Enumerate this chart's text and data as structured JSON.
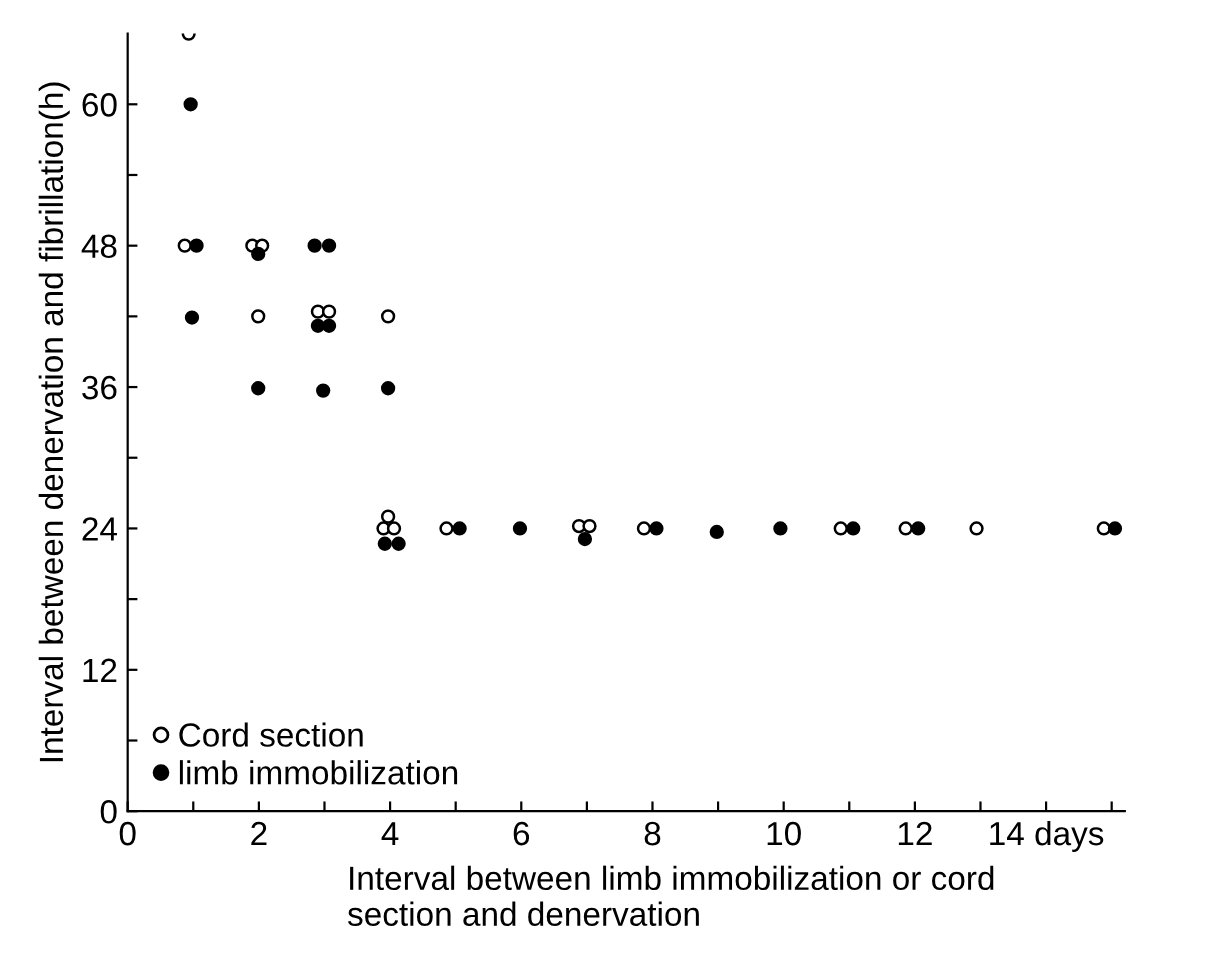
{
  "chart_data": {
    "type": "scatter",
    "xlabel": "Interval between limb immobilization or cord\nsection and denervation",
    "ylabel": "Interval between denervation and fibrillation(h)",
    "xlim": [
      0,
      15.2
    ],
    "ylim": [
      0,
      66
    ],
    "xticks": [
      0,
      {
        "value": 1,
        "label": null
      },
      2,
      {
        "value": 3,
        "label": null
      },
      4,
      {
        "value": 5,
        "label": null
      },
      6,
      {
        "value": 7,
        "label": null
      },
      8,
      {
        "value": 9,
        "label": null
      },
      10,
      {
        "value": 11,
        "label": null
      },
      12,
      {
        "value": 13,
        "label": null
      },
      {
        "value": 14,
        "label": "14 days"
      },
      {
        "value": 15,
        "label": null
      }
    ],
    "yticks": [
      0,
      {
        "value": 6,
        "label": null
      },
      12,
      {
        "value": 18,
        "label": null
      },
      24,
      {
        "value": 30,
        "label": null
      },
      36,
      {
        "value": 42,
        "label": null
      },
      48,
      {
        "value": 54,
        "label": null
      },
      60
    ],
    "grid": false,
    "legend": "bottom left",
    "marker": "circle",
    "series": [
      {
        "name": "Cord section",
        "color": "#ffffff",
        "x": [
          0.93,
          0.87,
          1.9,
          2.05,
          1.99,
          2.9,
          3.07,
          3.97,
          3.97,
          3.9,
          4.06,
          4.86,
          6.88,
          7.04,
          7.87,
          10.87,
          11.86,
          12.94,
          14.88
        ],
        "values": [
          66,
          48,
          48,
          48,
          42,
          42.4,
          42.4,
          42,
          25,
          24,
          24,
          24,
          24.2,
          24.2,
          24,
          24,
          24,
          24,
          24
        ]
      },
      {
        "name": "limb immobilization",
        "color": "#000000",
        "x": [
          0.96,
          1.05,
          0.98,
          1.99,
          1.99,
          2.85,
          3.07,
          2.9,
          3.07,
          2.98,
          3.97,
          3.92,
          4.13,
          5.06,
          5.98,
          6.97,
          8.06,
          8.98,
          9.95,
          11.06,
          12.05,
          15.05
        ],
        "values": [
          60,
          48,
          41.9,
          47.3,
          35.9,
          48,
          48,
          41.2,
          41.2,
          35.7,
          35.9,
          22.7,
          22.7,
          24,
          24,
          23.1,
          24,
          23.7,
          24,
          24,
          24,
          24
        ]
      }
    ]
  }
}
